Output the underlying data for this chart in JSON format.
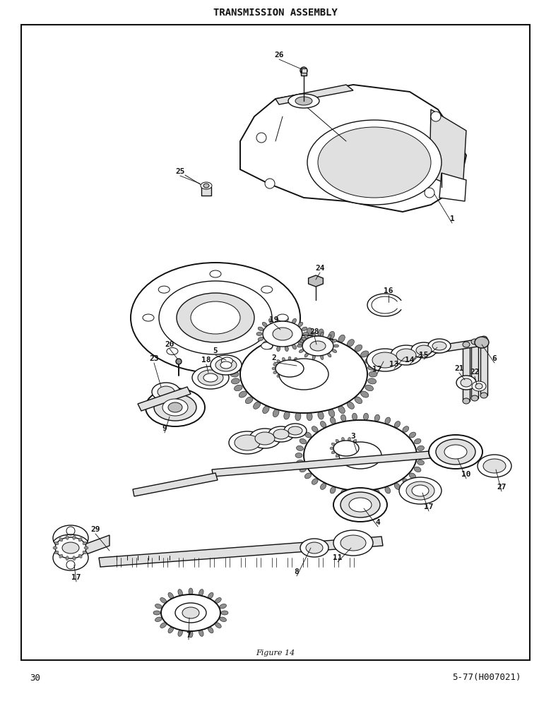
{
  "title": "TRANSMISSION ASSEMBLY",
  "figure_caption": "Figure 14",
  "page_number": "30",
  "page_ref": "5-77(H007021)",
  "bg_color": "#ffffff",
  "border_color": "#000000",
  "text_color": "#000000",
  "title_fontsize": 10,
  "caption_fontsize": 8,
  "page_num_fontsize": 9,
  "label_fontsize": 8
}
